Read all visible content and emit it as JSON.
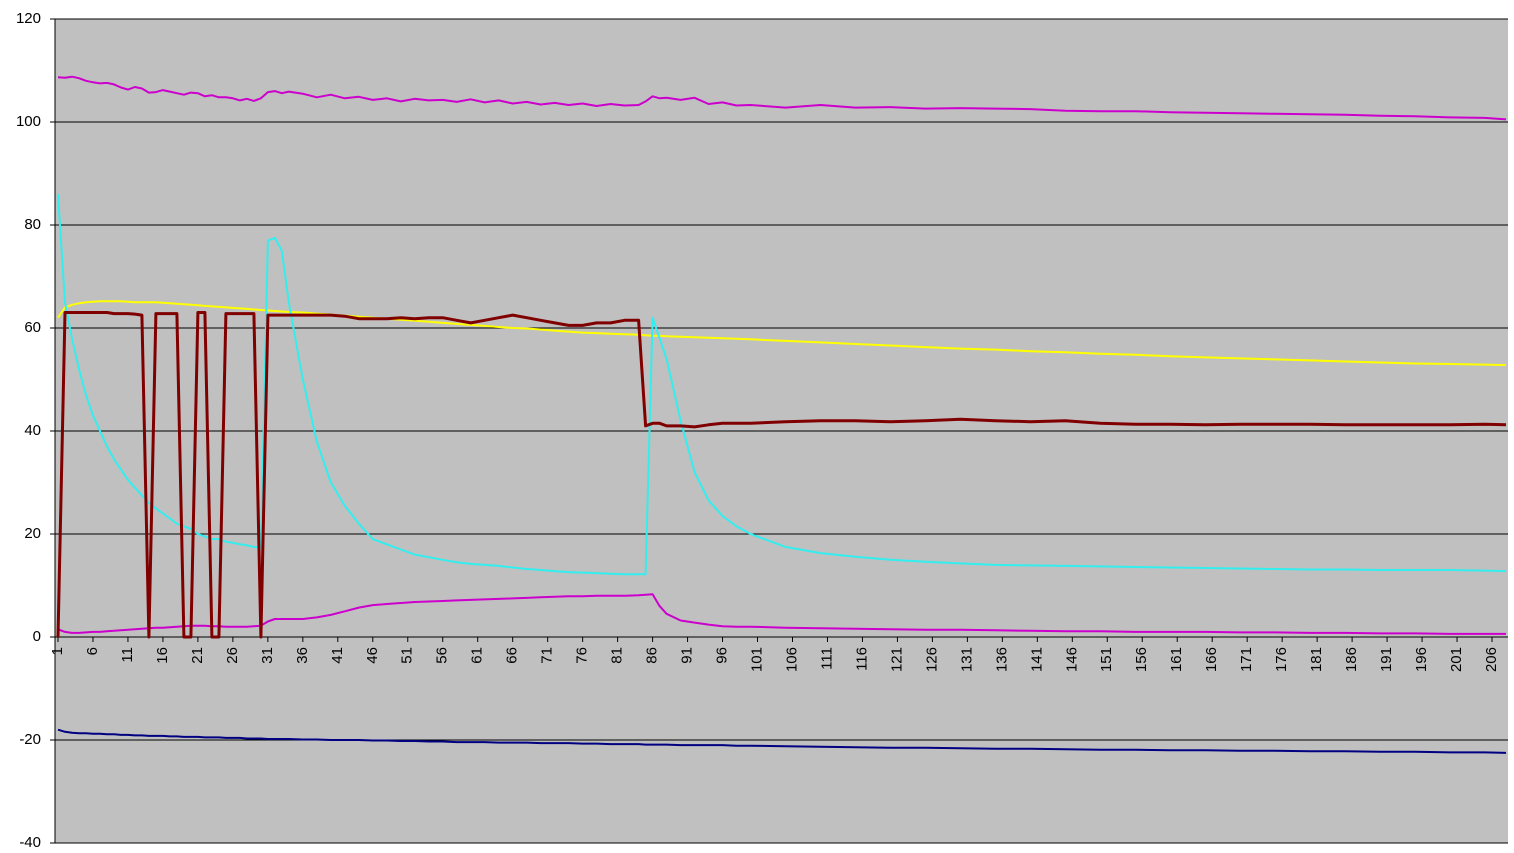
{
  "chart_data": {
    "type": "line",
    "x": [
      1,
      2,
      3,
      4,
      5,
      6,
      7,
      8,
      9,
      10,
      11,
      12,
      13,
      14,
      15,
      16,
      17,
      18,
      19,
      20,
      21,
      22,
      23,
      24,
      25,
      26,
      27,
      28,
      29,
      30,
      31,
      32,
      33,
      34,
      36,
      38,
      40,
      42,
      44,
      46,
      48,
      50,
      52,
      54,
      56,
      58,
      60,
      62,
      64,
      66,
      68,
      70,
      72,
      74,
      76,
      78,
      80,
      82,
      84,
      85,
      86,
      87,
      88,
      90,
      92,
      94,
      96,
      98,
      100,
      105,
      110,
      115,
      120,
      125,
      130,
      135,
      140,
      145,
      150,
      155,
      160,
      165,
      170,
      175,
      180,
      185,
      190,
      195,
      200,
      205,
      208
    ],
    "series": [
      {
        "color": "#cc00cc",
        "values": [
          108.7,
          108.6,
          108.8,
          108.5,
          108,
          107.7,
          107.5,
          107.6,
          107.3,
          106.7,
          106.3,
          106.8,
          106.5,
          105.7,
          105.8,
          106.2,
          105.9,
          105.6,
          105.3,
          105.7,
          105.6,
          105,
          105.2,
          104.8,
          104.8,
          104.6,
          104.2,
          104.5,
          104.1,
          104.6,
          105.8,
          106,
          105.6,
          105.9,
          105.5,
          104.8,
          105.3,
          104.6,
          104.9,
          104.3,
          104.6,
          104,
          104.5,
          104.2,
          104.3,
          103.9,
          104.4,
          103.8,
          104.2,
          103.6,
          103.9,
          103.4,
          103.7,
          103.3,
          103.6,
          103.1,
          103.5,
          103.2,
          103.3,
          104,
          105,
          104.6,
          104.7,
          104.3,
          104.7,
          103.5,
          103.8,
          103.2,
          103.3,
          102.8,
          103.3,
          102.8,
          102.9,
          102.6,
          102.7,
          102.6,
          102.5,
          102.2,
          102.1,
          102.1,
          101.9,
          101.8,
          101.7,
          101.6,
          101.5,
          101.4,
          101.2,
          101.1,
          100.9,
          100.8,
          100.5
        ]
      },
      {
        "color": "#ffff00",
        "values": [
          62,
          64,
          64.5,
          64.8,
          65,
          65.1,
          65.2,
          65.2,
          65.2,
          65.2,
          65.1,
          65,
          65,
          65,
          65,
          64.9,
          64.8,
          64.7,
          64.6,
          64.5,
          64.4,
          64.3,
          64.2,
          64.1,
          64,
          63.9,
          63.8,
          63.7,
          63.6,
          63.5,
          63.4,
          63.3,
          63.2,
          63.1,
          63,
          62.8,
          62.6,
          62.4,
          62.2,
          62,
          61.8,
          61.6,
          61.4,
          61.2,
          61,
          60.8,
          60.6,
          60.4,
          60.2,
          60,
          59.9,
          59.7,
          59.5,
          59.3,
          59.1,
          59,
          58.9,
          58.8,
          58.7,
          58.6,
          58.5,
          58.5,
          58.4,
          58.3,
          58.2,
          58.1,
          58,
          57.9,
          57.8,
          57.5,
          57.2,
          56.9,
          56.6,
          56.3,
          56,
          55.8,
          55.5,
          55.3,
          55,
          54.8,
          54.5,
          54.3,
          54.1,
          53.9,
          53.7,
          53.5,
          53.3,
          53.1,
          53,
          52.9,
          52.8
        ]
      },
      {
        "color": "#33eeee",
        "values": [
          86,
          65,
          58,
          52,
          47,
          43,
          40,
          37,
          34.5,
          32.5,
          30.5,
          29,
          27.5,
          26,
          25,
          24,
          23,
          22,
          21.5,
          21,
          20,
          19.5,
          19,
          19,
          18.5,
          18.3,
          18,
          17.8,
          17.5,
          17.3,
          77,
          77.5,
          75,
          65,
          50,
          38,
          30,
          25.5,
          22,
          19,
          18,
          17,
          16,
          15.5,
          15,
          14.5,
          14.2,
          14,
          13.8,
          13.5,
          13.2,
          13,
          12.8,
          12.6,
          12.5,
          12.4,
          12.3,
          12.2,
          12.2,
          12.2,
          62,
          58,
          54,
          42,
          32,
          26.5,
          23.5,
          21.5,
          20,
          17.5,
          16.3,
          15.6,
          15,
          14.6,
          14.3,
          14,
          13.9,
          13.8,
          13.7,
          13.6,
          13.5,
          13.4,
          13.3,
          13.2,
          13.1,
          13.1,
          13,
          13,
          13,
          12.9,
          12.8
        ]
      },
      {
        "color": "#cc00cc",
        "values": [
          1.5,
          1,
          0.8,
          0.8,
          0.9,
          1,
          1,
          1.1,
          1.2,
          1.3,
          1.4,
          1.5,
          1.6,
          1.7,
          1.8,
          1.8,
          1.9,
          2,
          2.1,
          2.2,
          2.2,
          2.2,
          2.1,
          2.1,
          2,
          2,
          2,
          2,
          2.1,
          2.2,
          3,
          3.5,
          3.5,
          3.5,
          3.5,
          3.8,
          4.3,
          5,
          5.7,
          6.2,
          6.4,
          6.6,
          6.8,
          6.9,
          7,
          7.1,
          7.2,
          7.3,
          7.4,
          7.5,
          7.6,
          7.7,
          7.8,
          7.9,
          7.9,
          8,
          8,
          8,
          8.1,
          8.2,
          8.3,
          6,
          4.5,
          3.2,
          2.8,
          2.4,
          2.1,
          2,
          2,
          1.8,
          1.7,
          1.6,
          1.5,
          1.4,
          1.4,
          1.3,
          1.2,
          1.1,
          1.1,
          1,
          1,
          1,
          0.9,
          0.9,
          0.8,
          0.8,
          0.7,
          0.7,
          0.6,
          0.6,
          0.6
        ]
      },
      {
        "color": "#800000",
        "values": [
          0,
          63,
          63,
          63,
          63,
          63,
          63,
          63,
          62.8,
          62.8,
          62.8,
          62.7,
          62.5,
          0,
          62.8,
          62.8,
          62.8,
          62.8,
          0,
          0,
          63,
          63,
          0,
          0,
          62.8,
          62.8,
          62.8,
          62.8,
          62.8,
          0,
          62.5,
          62.5,
          62.5,
          62.5,
          62.5,
          62.5,
          62.5,
          62.3,
          61.8,
          61.8,
          61.8,
          62,
          61.8,
          62,
          62,
          61.5,
          61,
          61.5,
          62,
          62.5,
          62,
          61.5,
          61,
          60.5,
          60.5,
          61,
          61,
          61.5,
          61.5,
          41,
          41.5,
          41.5,
          41,
          41,
          40.8,
          41.2,
          41.5,
          41.5,
          41.5,
          41.8,
          42,
          42,
          41.8,
          42,
          42.3,
          42,
          41.8,
          42,
          41.5,
          41.3,
          41.3,
          41.2,
          41.3,
          41.3,
          41.3,
          41.2,
          41.2,
          41.2,
          41.2,
          41.3,
          41.2
        ]
      },
      {
        "color": "#000080",
        "values": [
          -18,
          -18.4,
          -18.6,
          -18.7,
          -18.7,
          -18.8,
          -18.8,
          -18.9,
          -18.9,
          -19,
          -19,
          -19.1,
          -19.1,
          -19.2,
          -19.2,
          -19.2,
          -19.3,
          -19.3,
          -19.4,
          -19.4,
          -19.4,
          -19.5,
          -19.5,
          -19.5,
          -19.6,
          -19.6,
          -19.6,
          -19.7,
          -19.7,
          -19.7,
          -19.8,
          -19.8,
          -19.8,
          -19.8,
          -19.9,
          -19.9,
          -20,
          -20,
          -20,
          -20.1,
          -20.1,
          -20.2,
          -20.2,
          -20.3,
          -20.3,
          -20.4,
          -20.4,
          -20.4,
          -20.5,
          -20.5,
          -20.5,
          -20.6,
          -20.6,
          -20.6,
          -20.7,
          -20.7,
          -20.8,
          -20.8,
          -20.8,
          -20.9,
          -20.9,
          -20.9,
          -20.9,
          -21,
          -21,
          -21,
          -21,
          -21.1,
          -21.1,
          -21.2,
          -21.3,
          -21.4,
          -21.5,
          -21.5,
          -21.6,
          -21.7,
          -21.7,
          -21.8,
          -21.9,
          -21.9,
          -22,
          -22,
          -22.1,
          -22.1,
          -22.2,
          -22.2,
          -22.3,
          -22.3,
          -22.4,
          -22.4,
          -22.5
        ]
      }
    ],
    "xlim": [
      1,
      208
    ],
    "xticks": [
      1,
      6,
      11,
      16,
      21,
      26,
      31,
      36,
      41,
      46,
      51,
      56,
      61,
      66,
      71,
      76,
      81,
      86,
      91,
      96,
      101,
      106,
      111,
      116,
      121,
      126,
      131,
      136,
      141,
      146,
      151,
      156,
      161,
      166,
      171,
      176,
      181,
      186,
      191,
      196,
      201,
      206
    ],
    "ylim": [
      -40,
      120
    ],
    "yticks": [
      -40,
      -20,
      0,
      20,
      40,
      60,
      80,
      100,
      120
    ],
    "grid": true,
    "background": "#c0c0c0"
  }
}
